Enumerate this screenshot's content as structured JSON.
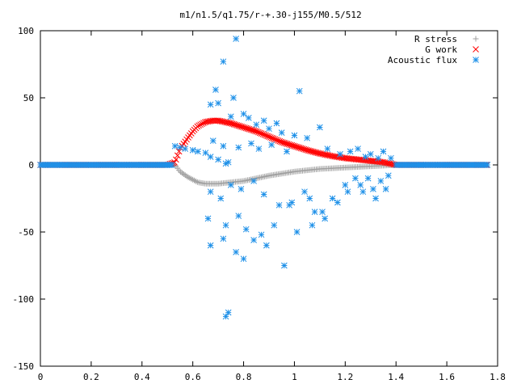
{
  "chart_data": {
    "type": "scatter",
    "title": "m1/n1.5/q1.75/r-+.30-j155/M0.5/512",
    "xlabel": "",
    "ylabel": "",
    "xlim": [
      0,
      1.8
    ],
    "ylim": [
      -150,
      100
    ],
    "x_ticks": [
      "0",
      "0.2",
      "0.4",
      "0.6",
      "0.8",
      "1",
      "1.2",
      "1.4",
      "1.6",
      "1.8"
    ],
    "y_ticks": [
      "100",
      "50",
      "0",
      "-50",
      "-100",
      "-150"
    ],
    "grid": false,
    "legend_position": "top-right",
    "colors": {
      "r_stress": "#a0a0a0",
      "g_work": "#ff0000",
      "acoustic_flux": "#1e90e8"
    },
    "series": [
      {
        "name": "R stress",
        "marker": "plus",
        "x": [
          0.0,
          0.1,
          0.2,
          0.3,
          0.4,
          0.5,
          0.53,
          0.55,
          0.58,
          0.6,
          0.62,
          0.65,
          0.68,
          0.7,
          0.75,
          0.8,
          0.85,
          0.9,
          0.95,
          1.0,
          1.05,
          1.1,
          1.15,
          1.2,
          1.25,
          1.3,
          1.35,
          1.4,
          1.5,
          1.6,
          1.7,
          1.76
        ],
        "y": [
          0,
          0,
          0,
          0,
          0,
          0,
          0,
          -5,
          -9,
          -11,
          -13,
          -14,
          -14,
          -14,
          -13,
          -12,
          -10,
          -8,
          -6.5,
          -5,
          -4,
          -3,
          -2.5,
          -2,
          -1.5,
          -1,
          -0.5,
          0,
          0,
          0,
          0,
          0
        ]
      },
      {
        "name": "G work",
        "marker": "cross",
        "x": [
          0.0,
          0.1,
          0.2,
          0.3,
          0.4,
          0.5,
          0.53,
          0.55,
          0.58,
          0.6,
          0.62,
          0.65,
          0.68,
          0.7,
          0.75,
          0.8,
          0.85,
          0.9,
          0.95,
          1.0,
          1.05,
          1.1,
          1.15,
          1.2,
          1.25,
          1.3,
          1.35,
          1.4,
          1.5,
          1.6,
          1.7,
          1.76
        ],
        "y": [
          0,
          0,
          0,
          0,
          0,
          0,
          2,
          12,
          20,
          25,
          29,
          32,
          33,
          33,
          31,
          28,
          25,
          21,
          17,
          14,
          11,
          8.5,
          6.5,
          5,
          4,
          3,
          2,
          0,
          0,
          0,
          0,
          0
        ]
      },
      {
        "name": "Acoustic flux",
        "marker": "star",
        "baseline_x": [
          0.0,
          0.1,
          0.2,
          0.3,
          0.4,
          0.5,
          0.52,
          1.4,
          1.5,
          1.6,
          1.7,
          1.76
        ],
        "baseline_y": [
          0,
          0,
          0,
          0,
          0,
          0,
          0,
          0,
          0,
          0,
          0,
          0
        ],
        "x": [
          0.53,
          0.55,
          0.57,
          0.6,
          0.62,
          0.65,
          0.67,
          0.7,
          0.73,
          0.74,
          0.77,
          0.69,
          0.72,
          0.76,
          0.8,
          0.85,
          0.9,
          0.95,
          1.0,
          0.67,
          0.7,
          0.75,
          0.82,
          0.88,
          0.93,
          1.02,
          1.1,
          0.68,
          0.72,
          0.78,
          0.83,
          0.86,
          0.91,
          0.97,
          1.05,
          1.13,
          1.18,
          1.22,
          1.25,
          1.28,
          1.3,
          1.33,
          1.35,
          1.38,
          0.67,
          0.71,
          0.75,
          0.79,
          0.84,
          0.88,
          0.94,
          0.99,
          1.04,
          1.08,
          1.15,
          1.2,
          1.24,
          1.27,
          1.31,
          1.34,
          1.37,
          0.66,
          0.73,
          0.78,
          0.81,
          0.87,
          0.92,
          0.98,
          1.06,
          1.12,
          1.17,
          1.21,
          1.26,
          1.29,
          1.32,
          1.36,
          0.67,
          0.72,
          0.77,
          0.8,
          0.84,
          0.89,
          0.96,
          1.01,
          1.07,
          1.11,
          0.73,
          0.74
        ],
        "y": [
          14,
          13,
          12,
          11,
          10,
          9,
          6,
          4,
          1,
          2,
          94,
          56,
          77,
          50,
          38,
          30,
          27,
          24,
          22,
          45,
          46,
          36,
          35,
          33,
          31,
          55,
          28,
          18,
          14,
          13,
          16,
          12,
          15,
          10,
          20,
          12,
          8,
          10,
          12,
          6,
          8,
          5,
          10,
          5,
          -20,
          -25,
          -15,
          -18,
          -12,
          -22,
          -30,
          -28,
          -20,
          -35,
          -25,
          -15,
          -10,
          -20,
          -18,
          -12,
          -8,
          -40,
          -45,
          -38,
          -48,
          -52,
          -45,
          -30,
          -25,
          -40,
          -28,
          -20,
          -15,
          -10,
          -25,
          -18,
          -60,
          -55,
          -65,
          -70,
          -56,
          -60,
          -75,
          -50,
          -45,
          -35,
          -113,
          -110
        ]
      }
    ]
  }
}
